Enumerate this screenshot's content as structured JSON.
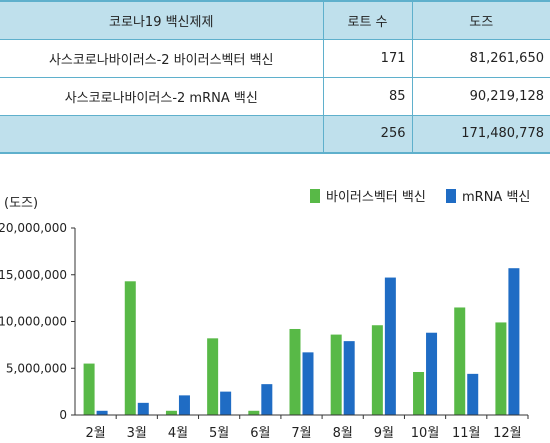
{
  "table": {
    "headers": [
      "코로나19 백신제제",
      "로트 수",
      "도즈"
    ],
    "rows": [
      {
        "name": "사스코로나바이러스-2 바이러스벡터 백신",
        "lots": "171",
        "doses": "81,261,650"
      },
      {
        "name": "사스코로나바이러스-2 mRNA 백신",
        "lots": "85",
        "doses": "90,219,128"
      }
    ],
    "total": {
      "name": "",
      "lots": "256",
      "doses": "171,480,778"
    }
  },
  "chart_data": {
    "type": "bar",
    "ylabel": "(도즈)",
    "ylim": [
      0,
      20000000
    ],
    "yticks": [
      0,
      5000000,
      10000000,
      15000000,
      20000000
    ],
    "ytick_labels": [
      "0",
      "5,000,000",
      "10,000,000",
      "15,000,000",
      "20,000,000"
    ],
    "categories": [
      "2월",
      "3월",
      "4월",
      "5월",
      "6월",
      "7월",
      "8월",
      "9월",
      "10월",
      "11월",
      "12월"
    ],
    "legend_position": "top-right",
    "grid": false,
    "series": [
      {
        "name": "바이러스벡터 백신",
        "color": "#58b947",
        "values": [
          5500000,
          14300000,
          450000,
          8200000,
          450000,
          9200000,
          8600000,
          9600000,
          4600000,
          11500000,
          9900000
        ]
      },
      {
        "name": "mRNA 백신",
        "color": "#1f6cc4",
        "values": [
          450000,
          1300000,
          2100000,
          2500000,
          3300000,
          6700000,
          7900000,
          14700000,
          8800000,
          4400000,
          15700000
        ]
      }
    ]
  }
}
